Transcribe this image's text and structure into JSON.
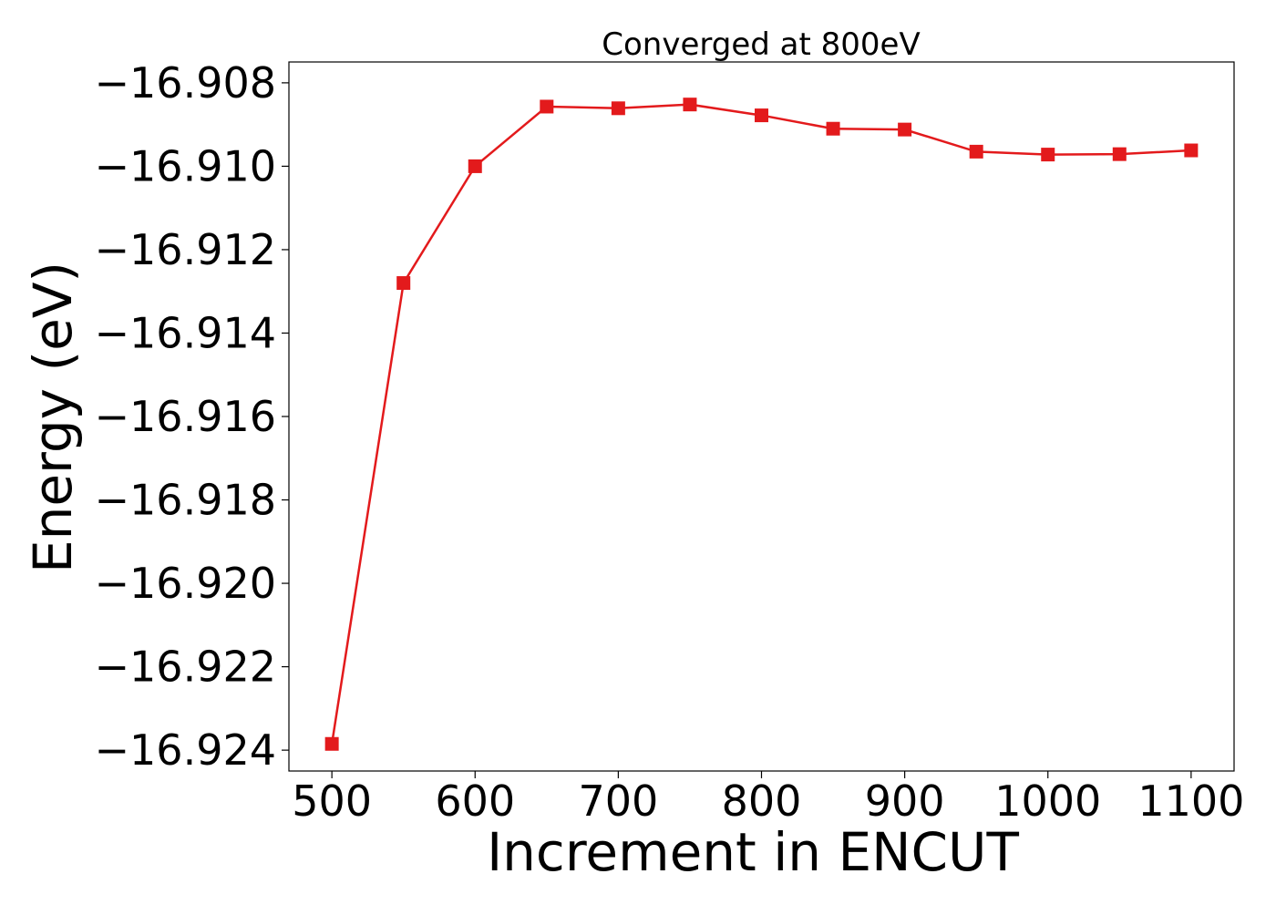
{
  "chart_data": {
    "type": "line",
    "title": "Converged at 800eV",
    "xlabel": "Increment in ENCUT",
    "ylabel": "Energy (eV)",
    "xlim": [
      470,
      1130
    ],
    "ylim": [
      -16.9245,
      -16.9075
    ],
    "x_ticks": [
      500,
      600,
      700,
      800,
      900,
      1000,
      1100
    ],
    "x_tick_labels": [
      "500",
      "600",
      "700",
      "800",
      "900",
      "1000",
      "1100"
    ],
    "y_ticks": [
      -16.908,
      -16.91,
      -16.912,
      -16.914,
      -16.916,
      -16.918,
      -16.92,
      -16.922,
      -16.924
    ],
    "y_tick_labels": [
      "−16.908",
      "−16.910",
      "−16.912",
      "−16.914",
      "−16.916",
      "−16.918",
      "−16.920",
      "−16.922",
      "−16.924"
    ],
    "grid": false,
    "marker": "square",
    "series": [
      {
        "color": "#e31a1c",
        "x": [
          500,
          550,
          600,
          650,
          700,
          750,
          800,
          850,
          900,
          950,
          1000,
          1050,
          1100
        ],
        "y": [
          -16.92385,
          -16.9128,
          -16.91,
          -16.90857,
          -16.90861,
          -16.90852,
          -16.90878,
          -16.9091,
          -16.90912,
          -16.90965,
          -16.90972,
          -16.90971,
          -16.90962
        ]
      }
    ]
  }
}
